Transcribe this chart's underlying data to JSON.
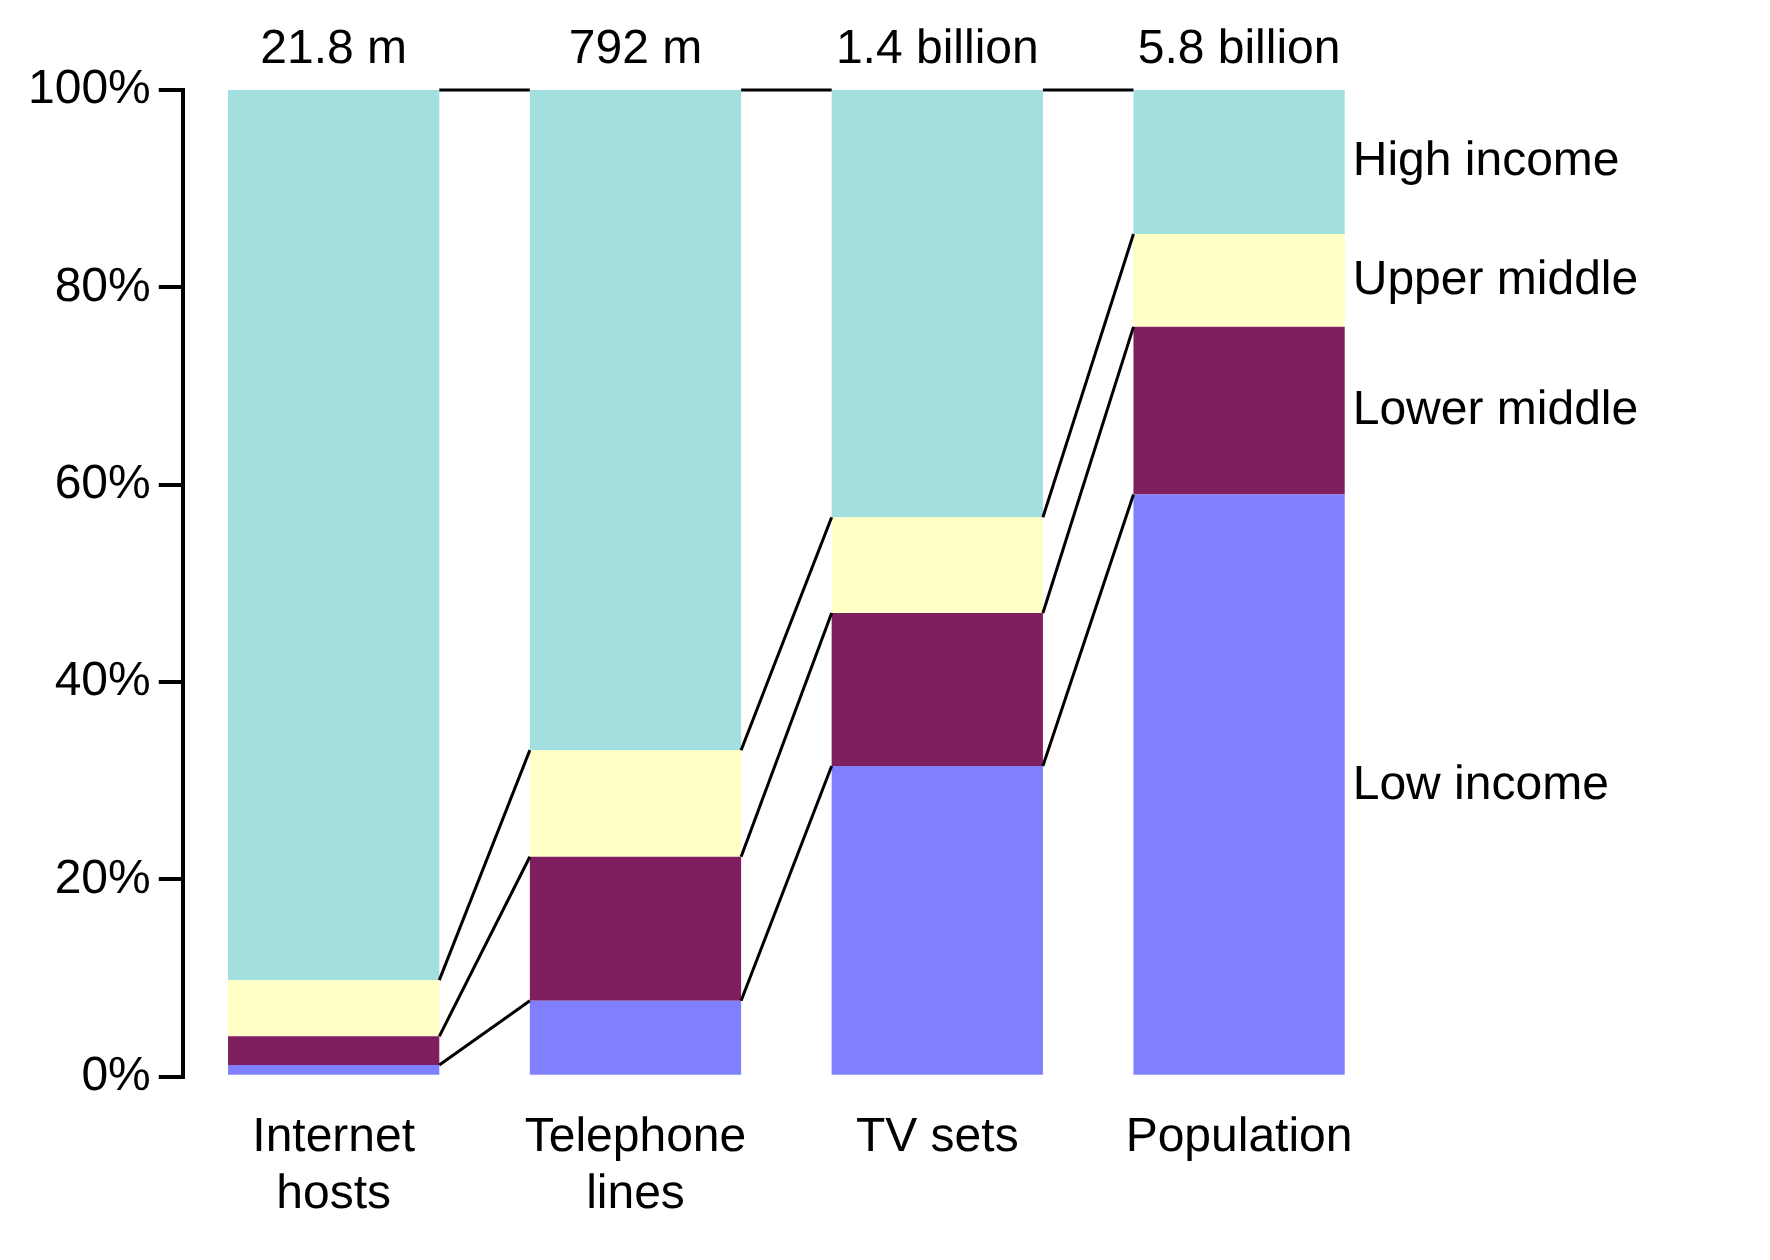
{
  "chart_data": {
    "type": "bar",
    "stacked": true,
    "categories": [
      "Internet hosts",
      "Telephone lines",
      "TV sets",
      "Population"
    ],
    "series": [
      {
        "name": "Low income",
        "color": "#8080ff",
        "values": [
          1.2,
          7.7,
          31.5,
          59.0
        ]
      },
      {
        "name": "Lower middle",
        "color": "#7f1f5f",
        "values": [
          2.9,
          14.6,
          15.5,
          17.0
        ]
      },
      {
        "name": "Upper middle",
        "color": "#ffffc6",
        "values": [
          5.7,
          10.8,
          9.7,
          9.4
        ]
      },
      {
        "name": "High income",
        "color": "#a3dfdf",
        "values": [
          90.2,
          66.9,
          43.3,
          14.6
        ]
      }
    ],
    "annotations": [
      {
        "text": "21.8 m",
        "x": "Internet hosts",
        "y": 100
      },
      {
        "text": "792 m",
        "x": "Telephone lines",
        "y": 100
      },
      {
        "text": "1.4 billion",
        "x": "TV sets",
        "y": 100
      },
      {
        "text": "5.8 billion",
        "x": "Population",
        "y": 100
      }
    ],
    "ylim": [
      0,
      100
    ],
    "yticks": [
      {
        "value": 0,
        "label": "0%"
      },
      {
        "value": 20,
        "label": "20%"
      },
      {
        "value": 40,
        "label": "40%"
      },
      {
        "value": 60,
        "label": "60%"
      },
      {
        "value": 80,
        "label": "80%"
      },
      {
        "value": 100,
        "label": "100%"
      }
    ],
    "grid": false,
    "legend": "right"
  }
}
